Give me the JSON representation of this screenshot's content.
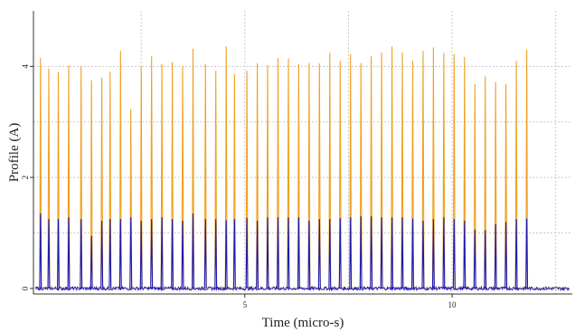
{
  "chart_data": {
    "type": "line",
    "title": "",
    "xlabel": "Time (micro-s)",
    "ylabel": "Profile (A)",
    "xlim": [
      -0.1,
      12.9
    ],
    "ylim": [
      -0.1,
      5.0
    ],
    "x_ticks": [
      5,
      10
    ],
    "y_ticks": [
      0,
      2,
      4
    ],
    "grid": true,
    "legend": "none",
    "pulse_width_x": 0.02,
    "baseline_noise": 0.03,
    "series": [
      {
        "color": "#f0a020",
        "pulse_times": [
          0.07,
          0.27,
          0.5,
          0.75,
          1.05,
          1.3,
          1.55,
          1.75,
          2.0,
          2.25,
          2.5,
          2.75,
          3.0,
          3.25,
          3.5,
          3.75,
          4.05,
          4.3,
          4.55,
          4.75,
          5.05,
          5.3,
          5.55,
          5.8,
          6.05,
          6.3,
          6.55,
          6.8,
          7.05,
          7.3,
          7.55,
          7.8,
          8.05,
          8.3,
          8.55,
          8.8,
          9.05,
          9.3,
          9.55,
          9.8,
          10.05,
          10.3,
          10.55,
          10.8,
          11.05,
          11.3,
          11.55,
          11.8
        ],
        "values": [
          4.15,
          3.96,
          3.9,
          4.02,
          4.0,
          3.75,
          3.8,
          3.9,
          4.28,
          3.23,
          4.0,
          4.18,
          4.04,
          4.08,
          4.0,
          4.32,
          4.04,
          3.92,
          4.36,
          3.86,
          3.92,
          4.06,
          4.02,
          4.15,
          4.14,
          4.04,
          4.06,
          4.05,
          4.24,
          4.1,
          4.22,
          4.06,
          4.18,
          4.25,
          4.36,
          4.25,
          4.1,
          4.28,
          4.34,
          4.24,
          4.22,
          4.17,
          3.68,
          3.82,
          3.72,
          3.68,
          4.1,
          4.3
        ]
      },
      {
        "color": "#1a1ab4",
        "pulse_times": [
          0.07,
          0.27,
          0.5,
          0.75,
          1.05,
          1.3,
          1.55,
          1.75,
          2.0,
          2.25,
          2.5,
          2.75,
          3.0,
          3.25,
          3.5,
          3.75,
          4.05,
          4.3,
          4.55,
          4.75,
          5.05,
          5.3,
          5.55,
          5.8,
          6.05,
          6.3,
          6.55,
          6.8,
          7.05,
          7.3,
          7.55,
          7.8,
          8.05,
          8.3,
          8.55,
          8.8,
          9.05,
          9.3,
          9.55,
          9.8,
          10.05,
          10.3,
          10.55,
          10.8,
          11.05,
          11.3,
          11.55,
          11.8
        ],
        "values": [
          1.35,
          1.25,
          1.25,
          1.28,
          1.25,
          0.95,
          1.22,
          1.25,
          1.25,
          1.28,
          1.22,
          1.25,
          1.28,
          1.25,
          1.22,
          1.35,
          1.25,
          1.25,
          1.23,
          1.25,
          1.27,
          1.22,
          1.28,
          1.28,
          1.28,
          1.28,
          1.22,
          1.25,
          1.25,
          1.27,
          1.28,
          1.3,
          1.3,
          1.28,
          1.28,
          1.28,
          1.26,
          1.22,
          1.25,
          1.28,
          1.25,
          1.22,
          1.06,
          1.05,
          1.16,
          1.2,
          1.25,
          1.26
        ]
      }
    ]
  }
}
